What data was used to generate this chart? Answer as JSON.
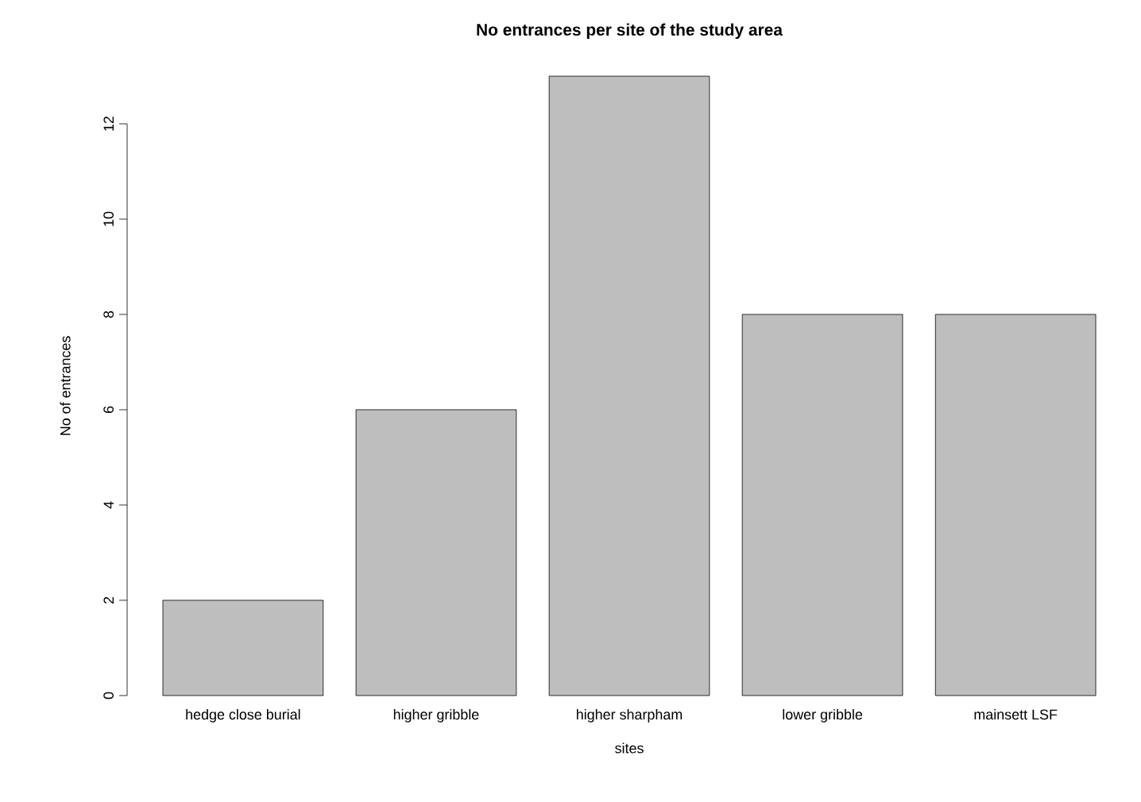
{
  "chart_data": {
    "type": "bar",
    "title": "No entrances per site of the study area",
    "xlabel": "sites",
    "ylabel": "No of entrances",
    "categories": [
      "hedge close burial",
      "higher gribble",
      "higher sharpham",
      "lower gribble",
      "mainsett LSF"
    ],
    "values": [
      2,
      6,
      13,
      8,
      8
    ],
    "color": "#bebebe",
    "ylim": [
      0,
      13
    ],
    "yticks": [
      0,
      2,
      4,
      6,
      8,
      10,
      12
    ],
    "grid": false
  }
}
